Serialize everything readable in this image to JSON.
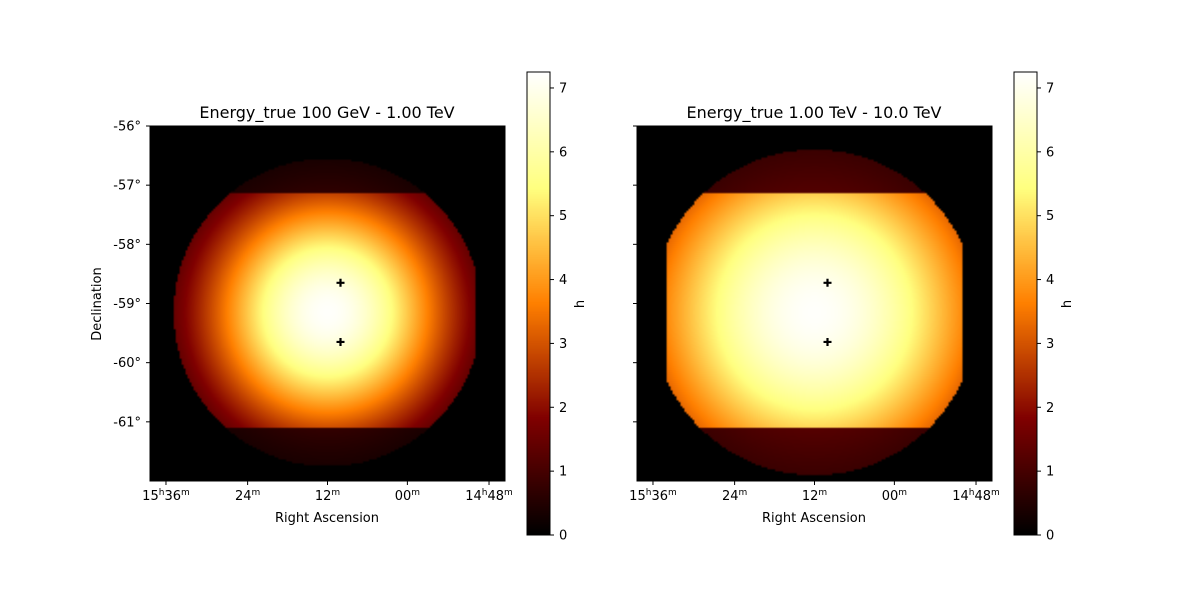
{
  "chart_data": [
    {
      "type": "heatmap",
      "title": "Energy_true 100 GeV - 1.00 TeV",
      "xlabel": "Right Ascension",
      "ylabel": "Declination",
      "x_ticks": [
        {
          "h": "15",
          "m": "36"
        },
        {
          "h": "",
          "m": "24"
        },
        {
          "h": "",
          "m": "12"
        },
        {
          "h": "",
          "m": "00"
        },
        {
          "h": "14",
          "m": "48"
        }
      ],
      "y_ticks": [
        "-56°",
        "-57°",
        "-58°",
        "-59°",
        "-60°",
        "-61°"
      ],
      "y_tick_values": [
        -56,
        -57,
        -58,
        -59,
        -60,
        -61
      ],
      "ylim": [
        -62,
        -56
      ],
      "colorbar": {
        "label": "h",
        "min": 0,
        "max": 7.25,
        "ticks": [
          "0",
          "1",
          "2",
          "3",
          "4",
          "5",
          "6",
          "7"
        ]
      },
      "colormap": "afmhot",
      "map": {
        "center_dec": -59.15,
        "peak": 7.2,
        "sigma_deg": 1.45,
        "disk_radius_deg": 2.6,
        "ra_cut_east_edge_deg": 2.5,
        "dec_cut_upper": -57.15,
        "dec_cut_lower": -61.1,
        "outside_band_factor": 0.25
      },
      "markers": [
        {
          "ra_offset_deg": 0,
          "dec": -58.65
        },
        {
          "ra_offset_deg": 0,
          "dec": -59.65
        }
      ]
    },
    {
      "type": "heatmap",
      "title": "Energy_true 1.00 TeV - 10.0 TeV",
      "xlabel": "Right Ascension",
      "ylabel": "",
      "x_ticks": [
        {
          "h": "15",
          "m": "36"
        },
        {
          "h": "",
          "m": "24"
        },
        {
          "h": "",
          "m": "12"
        },
        {
          "h": "",
          "m": "00"
        },
        {
          "h": "14",
          "m": "48"
        }
      ],
      "y_ticks": [],
      "y_tick_values": [
        -56,
        -57,
        -58,
        -59,
        -60,
        -61
      ],
      "ylim": [
        -62,
        -56
      ],
      "colorbar": {
        "label": "h",
        "min": 0,
        "max": 7.25,
        "ticks": [
          "0",
          "1",
          "2",
          "3",
          "4",
          "5",
          "6",
          "7"
        ]
      },
      "colormap": "afmhot",
      "map": {
        "center_dec": -59.15,
        "peak": 7.2,
        "sigma_deg": 2.2,
        "disk_radius_deg": 2.75,
        "ra_cut_west_edge_deg": 2.5,
        "ra_cut_east_edge_deg": 2.5,
        "dec_cut_upper": -57.15,
        "dec_cut_lower": -61.1,
        "outside_band_factor": 0.25
      },
      "markers": [
        {
          "ra_offset_deg": 0,
          "dec": -58.65
        },
        {
          "ra_offset_deg": 0,
          "dec": -59.65
        }
      ]
    }
  ]
}
